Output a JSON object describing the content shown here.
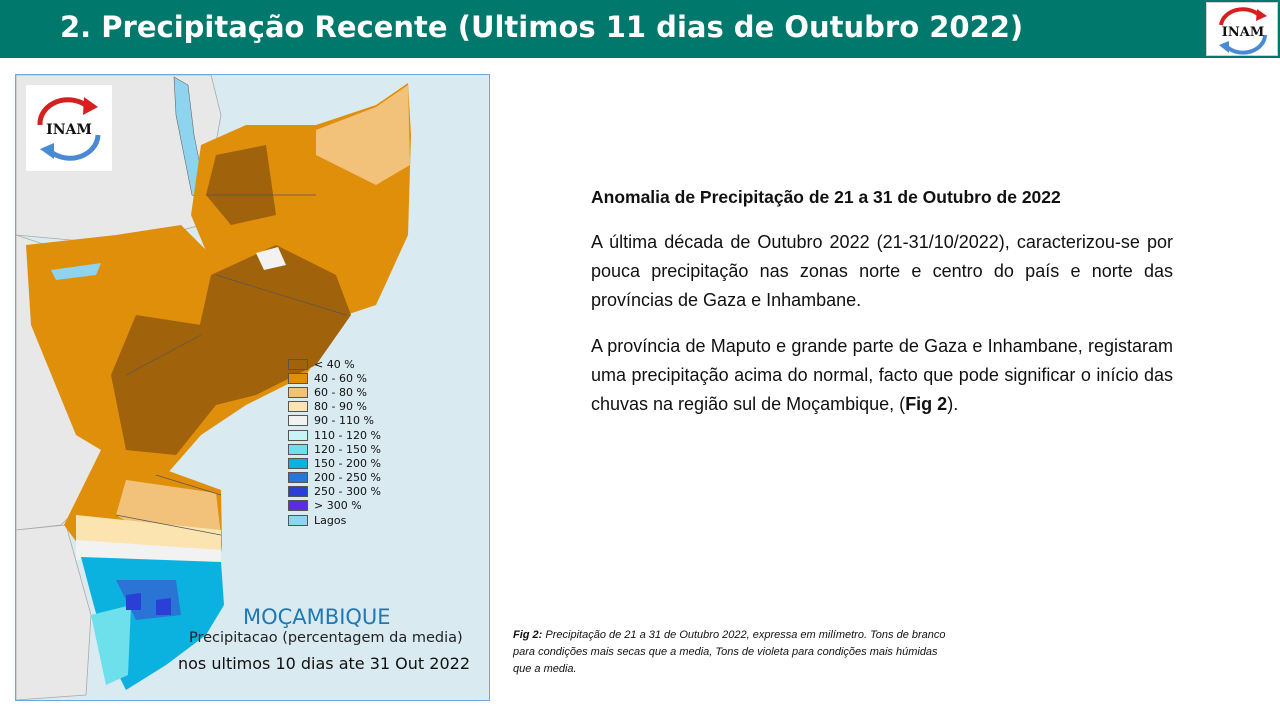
{
  "header": {
    "title": "2. Precipitação Recente (Ultimos 11 dias de Outubro 2022)",
    "logo_text": "INAM"
  },
  "figure": {
    "logo_text": "INAM",
    "legend": [
      {
        "label": "< 40 %",
        "color": "#a0620a"
      },
      {
        "label": "40 - 60 %",
        "color": "#e08f0b"
      },
      {
        "label": "60 - 80 %",
        "color": "#f2c27a"
      },
      {
        "label": "80 - 90 %",
        "color": "#fbe4b0"
      },
      {
        "label": "90 - 110 %",
        "color": "#f2f2f2"
      },
      {
        "label": "110 - 120 %",
        "color": "#c8f4f7"
      },
      {
        "label": "120 - 150 %",
        "color": "#6ee0ec"
      },
      {
        "label": "150 - 200 %",
        "color": "#0bb2e0"
      },
      {
        "label": "200 - 250 %",
        "color": "#2a74d6"
      },
      {
        "label": "250 - 300 %",
        "color": "#2a3fd6"
      },
      {
        "label": "> 300 %",
        "color": "#5a2ee0"
      },
      {
        "label": "Lagos",
        "color": "#8fd4ee"
      }
    ],
    "country": "MOÇAMBIQUE",
    "subtitle": "Precipitacao (percentagem da media)",
    "period": "nos ultimos 10 dias ate 31 Out 2022"
  },
  "text": {
    "heading": "Anomalia de Precipitação de 21 a 31 de  Outubro de 2022",
    "para1": "A última década de Outubro 2022 (21-31/10/2022), caracterizou-se por  pouca precipitação nas zonas norte e centro do país e norte das províncias de Gaza e Inhambane.",
    "para2_main": "A província de Maputo e grande parte de Gaza e Inhambane, registaram uma precipitação acima do normal, facto que pode significar o início das chuvas na região sul de Moçambique, (",
    "para2_ref": "Fig 2",
    "para2_end": ")."
  },
  "caption": {
    "label": "Fig 2:",
    "text": " Precipitação de 21 a 31 de Outubro 2022,  expressa em milímetro. Tons de branco para condições mais secas que a media, Tons de violeta para condições mais húmidas que a media."
  }
}
